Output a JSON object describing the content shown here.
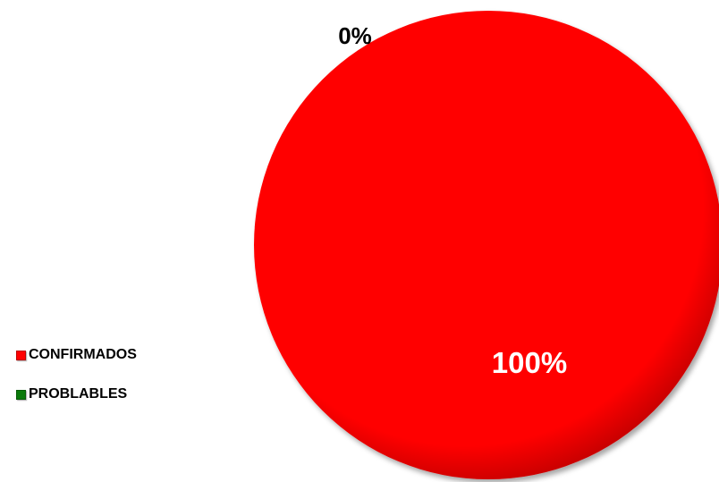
{
  "chart_data": {
    "type": "pie",
    "categories": [
      "CONFIRMADOS",
      "PROBLABLES"
    ],
    "values": [
      100,
      0
    ],
    "data_labels": [
      "100%",
      "0%"
    ],
    "colors": [
      "#ff0000",
      "#0a7a0a"
    ],
    "legend_position": "left",
    "title": ""
  }
}
